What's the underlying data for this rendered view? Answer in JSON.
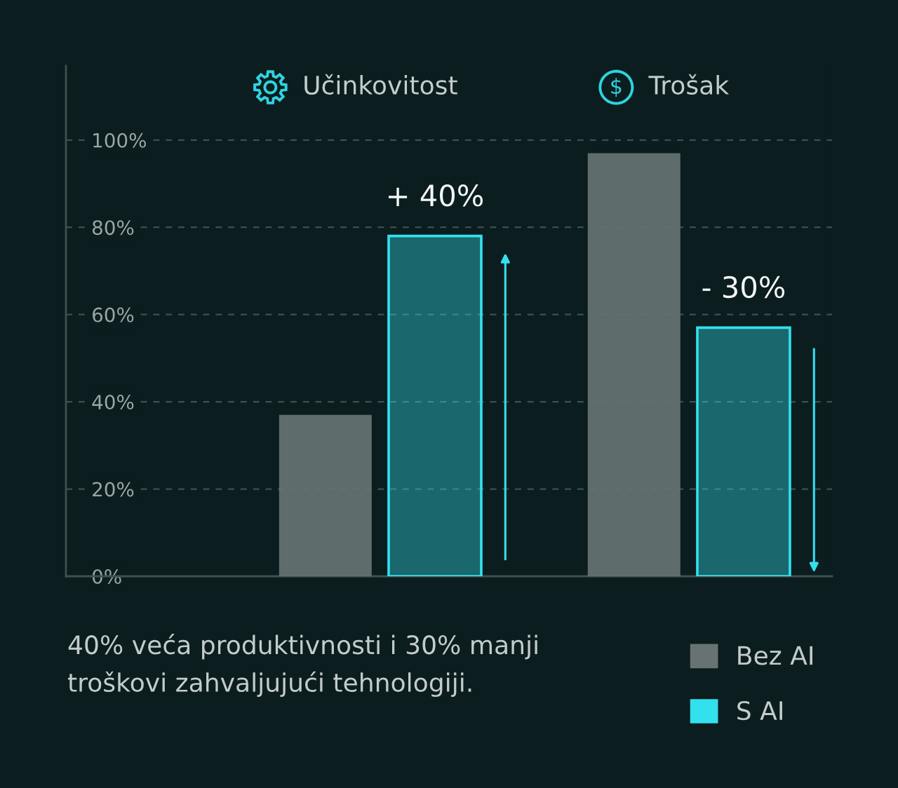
{
  "chart_data": {
    "type": "bar",
    "categories": [
      "Učinkovitost",
      "Trošak"
    ],
    "series": [
      {
        "name": "Bez AI",
        "color": "#667372",
        "values": [
          37,
          97
        ]
      },
      {
        "name": "S AI",
        "color": "#33e0ee",
        "values": [
          78,
          57
        ]
      }
    ],
    "ylim": [
      0,
      117
    ],
    "yticks": [
      {
        "value": 0,
        "label": "0%"
      },
      {
        "value": 20,
        "label": "20%"
      },
      {
        "value": 40,
        "label": "40%"
      },
      {
        "value": 60,
        "label": "60%"
      },
      {
        "value": 80,
        "label": "80%"
      },
      {
        "value": 100,
        "label": "100%"
      }
    ],
    "grid": "y",
    "legend": "bottom right",
    "annotations": [
      "+ 40%",
      "- 30%",
      "40% veća produktivnosti i 30% manji troškovi zahvaljujući tehnologiji."
    ]
  }
}
